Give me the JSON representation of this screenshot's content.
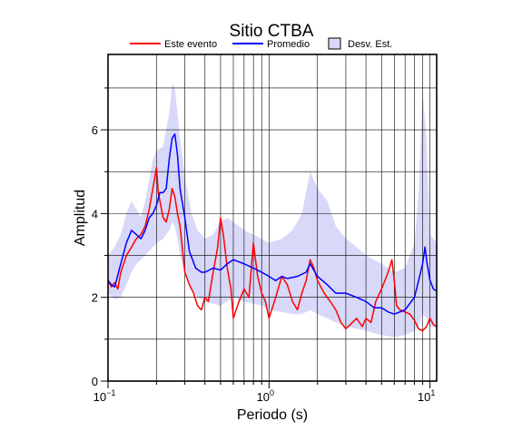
{
  "chart_data": {
    "type": "line",
    "title": "Sitio CTBA",
    "xlabel": "Periodo (s)",
    "ylabel": "Amplitud",
    "xscale": "log",
    "xlim": [
      0.1,
      11
    ],
    "ylim": [
      0,
      7.8
    ],
    "grid": true,
    "legend_position": "top",
    "x_ticks": [
      {
        "value": 0.1,
        "base": "10",
        "exp": "−1"
      },
      {
        "value": 1,
        "base": "10",
        "exp": "0"
      },
      {
        "value": 10,
        "base": "10",
        "exp": "1"
      }
    ],
    "y_ticks": [
      0,
      2,
      4,
      6
    ],
    "legend": [
      {
        "label": "Este evento",
        "kind": "line",
        "color": "#ff0000"
      },
      {
        "label": "Promedio",
        "kind": "line",
        "color": "#0000ff"
      },
      {
        "label": "Desv. Est.",
        "kind": "band",
        "color": "#d8d8f8"
      }
    ],
    "series": [
      {
        "name": "Este evento",
        "color": "#ff0000",
        "x": [
          0.1,
          0.105,
          0.11,
          0.115,
          0.12,
          0.125,
          0.13,
          0.14,
          0.15,
          0.16,
          0.17,
          0.18,
          0.19,
          0.2,
          0.205,
          0.21,
          0.22,
          0.23,
          0.24,
          0.25,
          0.26,
          0.27,
          0.28,
          0.3,
          0.32,
          0.34,
          0.36,
          0.38,
          0.4,
          0.42,
          0.45,
          0.48,
          0.5,
          0.52,
          0.55,
          0.58,
          0.6,
          0.65,
          0.7,
          0.75,
          0.8,
          0.85,
          0.9,
          0.95,
          1.0,
          1.1,
          1.2,
          1.3,
          1.4,
          1.5,
          1.6,
          1.7,
          1.8,
          1.9,
          2.0,
          2.2,
          2.4,
          2.6,
          2.8,
          3.0,
          3.2,
          3.5,
          3.8,
          4.0,
          4.3,
          4.6,
          5.0,
          5.5,
          5.8,
          6.0,
          6.2,
          6.5,
          7.0,
          7.5,
          8.0,
          8.5,
          9.0,
          9.5,
          10.0,
          10.5,
          11.0
        ],
        "values": [
          2.4,
          2.25,
          2.35,
          2.2,
          2.6,
          2.8,
          3.0,
          3.2,
          3.4,
          3.5,
          3.7,
          4.1,
          4.6,
          5.1,
          4.5,
          4.3,
          3.9,
          3.8,
          4.1,
          4.6,
          4.4,
          4.0,
          3.7,
          2.6,
          2.3,
          2.1,
          1.8,
          1.7,
          2.0,
          1.9,
          2.6,
          3.2,
          3.9,
          3.5,
          2.7,
          2.2,
          1.5,
          1.9,
          2.2,
          2.0,
          3.3,
          2.5,
          2.1,
          1.9,
          1.5,
          2.0,
          2.5,
          2.3,
          1.9,
          1.7,
          2.1,
          2.4,
          2.9,
          2.7,
          2.4,
          2.1,
          1.9,
          1.7,
          1.4,
          1.25,
          1.35,
          1.5,
          1.3,
          1.5,
          1.4,
          1.9,
          2.2,
          2.6,
          2.9,
          2.4,
          1.8,
          1.7,
          1.65,
          1.6,
          1.45,
          1.25,
          1.2,
          1.3,
          1.5,
          1.35,
          1.3
        ]
      },
      {
        "name": "Promedio",
        "color": "#0000ff",
        "x": [
          0.1,
          0.105,
          0.11,
          0.12,
          0.13,
          0.14,
          0.15,
          0.16,
          0.17,
          0.18,
          0.19,
          0.2,
          0.21,
          0.22,
          0.23,
          0.24,
          0.25,
          0.26,
          0.27,
          0.28,
          0.3,
          0.32,
          0.35,
          0.38,
          0.4,
          0.45,
          0.5,
          0.55,
          0.6,
          0.7,
          0.8,
          0.9,
          1.0,
          1.1,
          1.2,
          1.3,
          1.5,
          1.7,
          1.8,
          2.0,
          2.3,
          2.6,
          3.0,
          3.5,
          4.0,
          4.5,
          5.0,
          5.5,
          6.0,
          7.0,
          8.0,
          8.5,
          9.0,
          9.3,
          9.6,
          10.0,
          10.5,
          11.0
        ],
        "values": [
          2.4,
          2.3,
          2.25,
          2.8,
          3.3,
          3.6,
          3.5,
          3.4,
          3.6,
          3.9,
          4.0,
          4.2,
          4.5,
          4.5,
          4.6,
          5.3,
          5.8,
          5.9,
          5.4,
          4.6,
          3.9,
          3.1,
          2.7,
          2.6,
          2.6,
          2.7,
          2.65,
          2.8,
          2.9,
          2.8,
          2.7,
          2.6,
          2.5,
          2.4,
          2.5,
          2.45,
          2.5,
          2.6,
          2.8,
          2.5,
          2.3,
          2.1,
          2.1,
          2.0,
          1.9,
          1.75,
          1.75,
          1.65,
          1.6,
          1.7,
          2.0,
          2.4,
          2.8,
          3.2,
          2.8,
          2.4,
          2.2,
          2.15
        ]
      }
    ],
    "band": {
      "name": "Desv. Est.",
      "color": "#d8d8f8",
      "x": [
        0.1,
        0.11,
        0.12,
        0.13,
        0.14,
        0.15,
        0.16,
        0.17,
        0.18,
        0.19,
        0.2,
        0.22,
        0.24,
        0.25,
        0.26,
        0.27,
        0.28,
        0.3,
        0.33,
        0.36,
        0.4,
        0.45,
        0.5,
        0.55,
        0.6,
        0.7,
        0.8,
        0.9,
        1.0,
        1.2,
        1.4,
        1.6,
        1.8,
        2.0,
        2.3,
        2.6,
        3.0,
        3.5,
        4.0,
        5.0,
        6.0,
        7.0,
        8.0,
        8.5,
        9.0,
        9.5,
        10.0,
        11.0
      ],
      "upper": [
        3.0,
        3.2,
        3.5,
        4.0,
        4.3,
        4.1,
        3.9,
        4.3,
        4.8,
        5.3,
        5.5,
        5.6,
        6.4,
        7.1,
        7.0,
        6.4,
        5.8,
        4.9,
        4.0,
        3.6,
        3.4,
        3.5,
        3.8,
        3.9,
        3.8,
        3.6,
        3.5,
        3.4,
        3.3,
        3.4,
        3.6,
        4.0,
        5.0,
        4.6,
        4.3,
        3.7,
        3.4,
        3.2,
        3.0,
        2.8,
        2.6,
        2.7,
        3.3,
        4.5,
        6.9,
        5.8,
        3.5,
        3.3
      ],
      "lower": [
        2.1,
        1.95,
        2.0,
        2.3,
        2.6,
        2.8,
        2.9,
        3.0,
        3.1,
        3.2,
        3.3,
        3.4,
        3.6,
        3.8,
        3.7,
        3.4,
        3.0,
        2.6,
        2.2,
        2.0,
        1.9,
        1.85,
        1.8,
        1.9,
        2.0,
        1.9,
        1.85,
        1.8,
        1.7,
        1.65,
        1.6,
        1.6,
        1.7,
        1.6,
        1.5,
        1.4,
        1.3,
        1.25,
        1.2,
        1.1,
        1.05,
        1.1,
        1.2,
        1.3,
        1.6,
        1.5,
        1.3,
        1.3
      ]
    }
  }
}
